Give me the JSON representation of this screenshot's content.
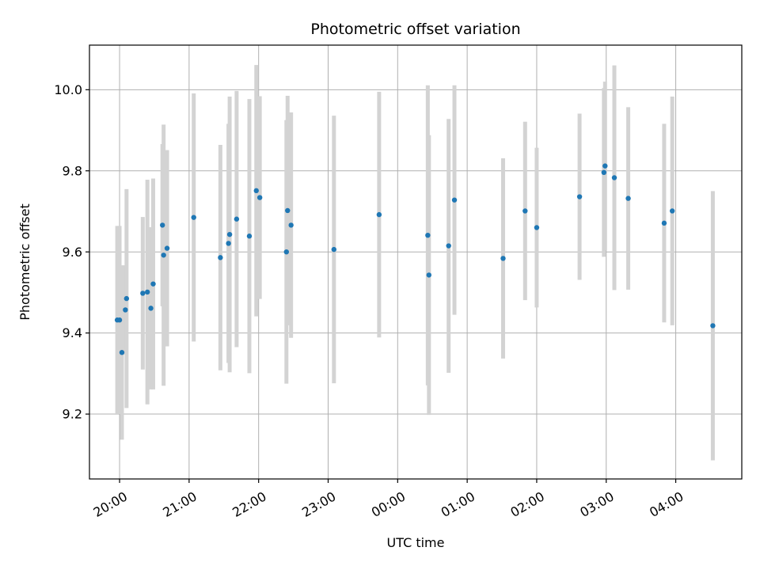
{
  "chart_data": {
    "type": "scatter",
    "title": "Photometric offset variation",
    "xlabel": "UTC time",
    "ylabel": "Photometric offset",
    "grid": true,
    "x_unit": "UTC time (HH:MM), observation night 20:00 to 04:00 next day",
    "x_ticks": [
      "20:00",
      "21:00",
      "22:00",
      "23:00",
      "00:00",
      "01:00",
      "02:00",
      "03:00",
      "04:00"
    ],
    "x_range": [
      "19:34",
      "04:57"
    ],
    "y_ticks": [
      9.2,
      9.4,
      9.6,
      9.8,
      10.0
    ],
    "y_range": [
      9.04,
      10.11
    ],
    "colors": {
      "point": "#1f77b4",
      "errorbar": "#d3d3d3"
    },
    "series": [
      {
        "points": [
          {
            "x": "19:58",
            "y": 9.432,
            "err": 0.232
          },
          {
            "x": "20:00",
            "y": 9.432,
            "err": 0.232
          },
          {
            "x": "20:02",
            "y": 9.352,
            "err": 0.215
          },
          {
            "x": "20:05",
            "y": 9.457,
            "err": 0.11
          },
          {
            "x": "20:06",
            "y": 9.485,
            "err": 0.27
          },
          {
            "x": "20:20",
            "y": 9.498,
            "err": 0.188
          },
          {
            "x": "20:24",
            "y": 9.501,
            "err": 0.277
          },
          {
            "x": "20:27",
            "y": 9.461,
            "err": 0.2
          },
          {
            "x": "20:29",
            "y": 9.521,
            "err": 0.26
          },
          {
            "x": "20:37",
            "y": 9.666,
            "err": 0.2
          },
          {
            "x": "20:38",
            "y": 9.592,
            "err": 0.322
          },
          {
            "x": "20:41",
            "y": 9.609,
            "err": 0.242
          },
          {
            "x": "21:04",
            "y": 9.685,
            "err": 0.306
          },
          {
            "x": "21:27",
            "y": 9.586,
            "err": 0.278
          },
          {
            "x": "21:34",
            "y": 9.621,
            "err": 0.295
          },
          {
            "x": "21:35",
            "y": 9.643,
            "err": 0.34
          },
          {
            "x": "21:41",
            "y": 9.681,
            "err": 0.316
          },
          {
            "x": "21:52",
            "y": 9.639,
            "err": 0.338
          },
          {
            "x": "21:58",
            "y": 9.751,
            "err": 0.31
          },
          {
            "x": "22:01",
            "y": 9.734,
            "err": 0.25
          },
          {
            "x": "22:24",
            "y": 9.6,
            "err": 0.325
          },
          {
            "x": "22:25",
            "y": 9.702,
            "err": 0.283
          },
          {
            "x": "22:28",
            "y": 9.666,
            "err": 0.278
          },
          {
            "x": "23:05",
            "y": 9.606,
            "err": 0.33
          },
          {
            "x": "23:44",
            "y": 9.692,
            "err": 0.303
          },
          {
            "x": "00:26",
            "y": 9.641,
            "err": 0.37
          },
          {
            "x": "00:27",
            "y": 9.543,
            "err": 0.345
          },
          {
            "x": "00:44",
            "y": 9.615,
            "err": 0.313
          },
          {
            "x": "00:49",
            "y": 9.728,
            "err": 0.283
          },
          {
            "x": "01:31",
            "y": 9.584,
            "err": 0.247
          },
          {
            "x": "01:50",
            "y": 9.701,
            "err": 0.22
          },
          {
            "x": "02:00",
            "y": 9.66,
            "err": 0.197
          },
          {
            "x": "02:37",
            "y": 9.736,
            "err": 0.205
          },
          {
            "x": "02:58",
            "y": 9.796,
            "err": 0.208
          },
          {
            "x": "02:59",
            "y": 9.812,
            "err": 0.208
          },
          {
            "x": "03:07",
            "y": 9.783,
            "err": 0.277
          },
          {
            "x": "03:19",
            "y": 9.732,
            "err": 0.225
          },
          {
            "x": "03:50",
            "y": 9.671,
            "err": 0.245
          },
          {
            "x": "03:57",
            "y": 9.701,
            "err": 0.282
          },
          {
            "x": "04:32",
            "y": 9.418,
            "err": 0.332
          }
        ]
      }
    ]
  }
}
